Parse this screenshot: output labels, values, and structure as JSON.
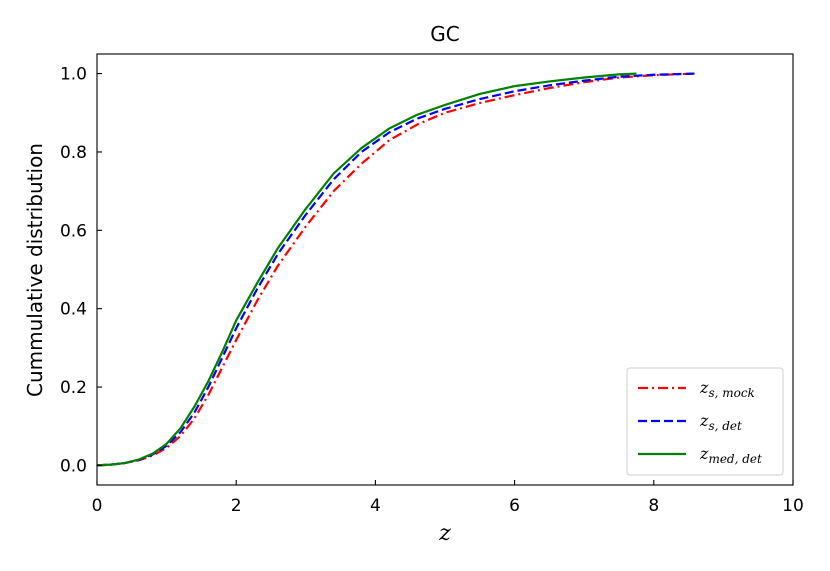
{
  "chart_data": {
    "type": "line",
    "title": "GC",
    "xlabel": "z",
    "ylabel": "Cummulative distribution",
    "xlim": [
      0,
      10
    ],
    "ylim": [
      -0.05,
      1.05
    ],
    "xticks": [
      0,
      2,
      4,
      6,
      8,
      10
    ],
    "yticks": [
      0.0,
      0.2,
      0.4,
      0.6,
      0.8,
      1.0
    ],
    "xtick_labels": [
      "0",
      "2",
      "4",
      "6",
      "8",
      "10"
    ],
    "ytick_labels": [
      "0.0",
      "0.2",
      "0.4",
      "0.6",
      "0.8",
      "1.0"
    ],
    "grid": false,
    "legend_position": "lower-right",
    "series": [
      {
        "name": "z_{s, mock}",
        "legend_main": "z",
        "legend_sub": "s, mock",
        "color": "#ff0000",
        "style": "dashdot",
        "x": [
          0,
          0.2,
          0.4,
          0.6,
          0.8,
          1.0,
          1.2,
          1.4,
          1.6,
          1.8,
          2.0,
          2.3,
          2.6,
          3.0,
          3.4,
          3.8,
          4.2,
          4.6,
          5.0,
          5.5,
          6.0,
          6.5,
          7.0,
          7.5,
          8.0,
          8.6
        ],
        "y": [
          0,
          0.002,
          0.006,
          0.013,
          0.025,
          0.045,
          0.075,
          0.12,
          0.18,
          0.25,
          0.32,
          0.42,
          0.51,
          0.61,
          0.7,
          0.77,
          0.83,
          0.87,
          0.9,
          0.925,
          0.945,
          0.963,
          0.978,
          0.99,
          0.996,
          1.0
        ]
      },
      {
        "name": "z_{s, det}",
        "legend_main": "z",
        "legend_sub": "s, det",
        "color": "#0000ff",
        "style": "dashed",
        "x": [
          0,
          0.2,
          0.4,
          0.6,
          0.8,
          1.0,
          1.2,
          1.4,
          1.6,
          1.8,
          2.0,
          2.3,
          2.6,
          3.0,
          3.4,
          3.8,
          4.2,
          4.6,
          5.0,
          5.5,
          6.0,
          6.5,
          7.0,
          7.5,
          8.0,
          8.6
        ],
        "y": [
          0,
          0.002,
          0.006,
          0.014,
          0.028,
          0.05,
          0.085,
          0.135,
          0.2,
          0.275,
          0.35,
          0.45,
          0.54,
          0.64,
          0.73,
          0.8,
          0.85,
          0.885,
          0.91,
          0.935,
          0.955,
          0.97,
          0.982,
          0.992,
          0.997,
          1.0
        ]
      },
      {
        "name": "z_{med, det}",
        "legend_main": "z",
        "legend_sub": "med, det",
        "color": "#008000",
        "style": "solid",
        "x": [
          0,
          0.2,
          0.4,
          0.6,
          0.8,
          1.0,
          1.2,
          1.4,
          1.6,
          1.8,
          2.0,
          2.3,
          2.6,
          3.0,
          3.4,
          3.8,
          4.2,
          4.6,
          5.0,
          5.5,
          6.0,
          6.5,
          7.0,
          7.5,
          7.75
        ],
        "y": [
          0,
          0.002,
          0.006,
          0.015,
          0.03,
          0.055,
          0.095,
          0.15,
          0.215,
          0.29,
          0.37,
          0.465,
          0.555,
          0.655,
          0.745,
          0.81,
          0.86,
          0.895,
          0.92,
          0.948,
          0.968,
          0.98,
          0.99,
          0.998,
          1.0
        ]
      }
    ]
  }
}
